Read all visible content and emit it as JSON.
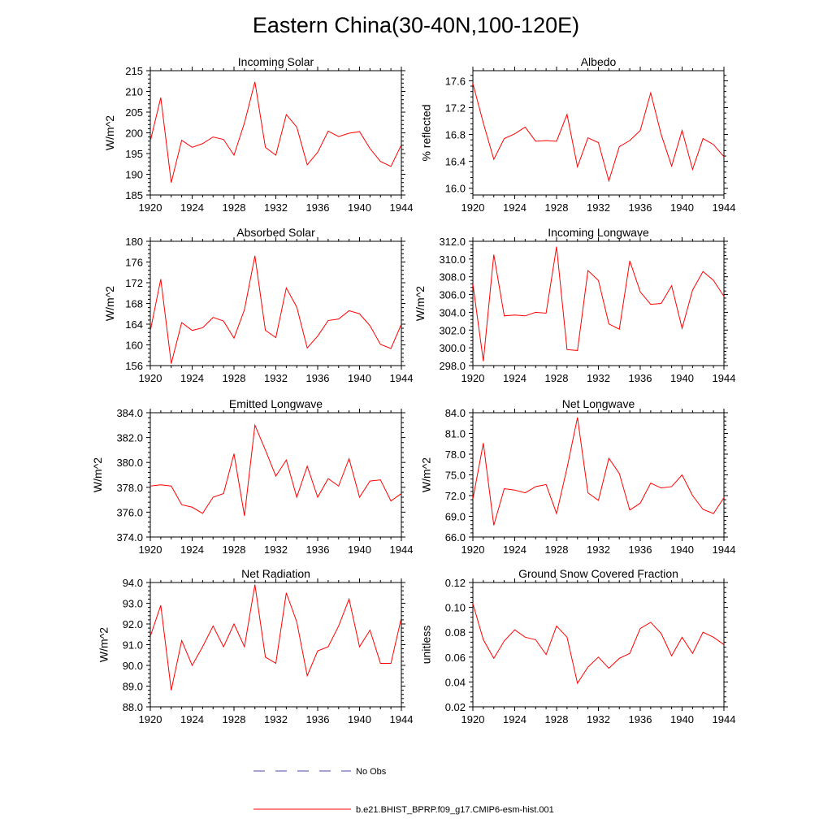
{
  "title": "Eastern China(30-40N,100-120E)",
  "colors": {
    "model": "#ff0000",
    "obs": "#4a4aa8",
    "axis": "#000000"
  },
  "legend": {
    "obs_label": "No Obs",
    "model_label": "b.e21.BHIST_BPRP.f09_g17.CMIP6-esm-hist.001"
  },
  "chart_data": [
    {
      "type": "line",
      "title": "Incoming Solar",
      "ylabel": "W/m^2",
      "xlim": [
        1920,
        1944
      ],
      "ylim": [
        185,
        215
      ],
      "xticks": [
        "1920",
        "1924",
        "1928",
        "1932",
        "1936",
        "1940",
        "1944"
      ],
      "yticks": [
        "185",
        "190",
        "195",
        "200",
        "205",
        "210",
        "215"
      ],
      "x": [
        1920,
        1921,
        1922,
        1923,
        1924,
        1925,
        1926,
        1927,
        1928,
        1929,
        1930,
        1931,
        1932,
        1933,
        1934,
        1935,
        1936,
        1937,
        1938,
        1939,
        1940,
        1941,
        1942,
        1943,
        1944
      ],
      "series": [
        {
          "values": [
            198.0,
            208.5,
            188.0,
            198.2,
            196.5,
            197.4,
            199.0,
            198.4,
            194.6,
            202.4,
            212.3,
            196.5,
            194.6,
            204.4,
            201.4,
            192.3,
            195.3,
            200.4,
            199.1,
            199.9,
            200.3,
            196.2,
            193.1,
            191.9,
            197.1
          ]
        }
      ]
    },
    {
      "type": "line",
      "title": "Albedo",
      "ylabel": "% reflected",
      "xlim": [
        1920,
        1944
      ],
      "ylim": [
        15.9,
        17.75
      ],
      "xticks": [
        "1920",
        "1924",
        "1928",
        "1932",
        "1936",
        "1940",
        "1944"
      ],
      "yticks": [
        "16.0",
        "16.4",
        "16.8",
        "17.2",
        "17.6"
      ],
      "x": [
        1920,
        1921,
        1922,
        1923,
        1924,
        1925,
        1926,
        1927,
        1928,
        1929,
        1930,
        1931,
        1932,
        1933,
        1934,
        1935,
        1936,
        1937,
        1938,
        1939,
        1940,
        1941,
        1942,
        1943,
        1944
      ],
      "series": [
        {
          "values": [
            17.56,
            16.97,
            16.43,
            16.74,
            16.81,
            16.91,
            16.7,
            16.71,
            16.7,
            17.1,
            16.32,
            16.75,
            16.68,
            16.11,
            16.62,
            16.71,
            16.86,
            17.42,
            16.8,
            16.33,
            16.86,
            16.28,
            16.74,
            16.65,
            16.47
          ]
        }
      ]
    },
    {
      "type": "line",
      "title": "Absorbed Solar",
      "ylabel": "W/m^2",
      "xlim": [
        1920,
        1944
      ],
      "ylim": [
        156,
        180
      ],
      "xticks": [
        "1920",
        "1924",
        "1928",
        "1932",
        "1936",
        "1940",
        "1944"
      ],
      "yticks": [
        "156",
        "160",
        "164",
        "168",
        "172",
        "176",
        "180"
      ],
      "x": [
        1920,
        1921,
        1922,
        1923,
        1924,
        1925,
        1926,
        1927,
        1928,
        1929,
        1930,
        1931,
        1932,
        1933,
        1934,
        1935,
        1936,
        1937,
        1938,
        1939,
        1940,
        1941,
        1942,
        1943,
        1944
      ],
      "series": [
        {
          "values": [
            162.7,
            172.7,
            156.4,
            164.3,
            162.8,
            163.3,
            165.3,
            164.6,
            161.3,
            166.8,
            177.2,
            162.8,
            161.4,
            171.0,
            167.3,
            159.4,
            161.7,
            164.7,
            165.0,
            166.6,
            166.0,
            163.7,
            160.1,
            159.3,
            164.0
          ]
        }
      ]
    },
    {
      "type": "line",
      "title": "Incoming Longwave",
      "ylabel": "W/m^2",
      "xlim": [
        1920,
        1944
      ],
      "ylim": [
        298.0,
        312.0
      ],
      "xticks": [
        "1920",
        "1924",
        "1928",
        "1932",
        "1936",
        "1940",
        "1944"
      ],
      "yticks": [
        "298.0",
        "300.0",
        "302.0",
        "304.0",
        "306.0",
        "308.0",
        "310.0",
        "312.0"
      ],
      "x": [
        1920,
        1921,
        1922,
        1923,
        1924,
        1925,
        1926,
        1927,
        1928,
        1929,
        1930,
        1931,
        1932,
        1933,
        1934,
        1935,
        1936,
        1937,
        1938,
        1939,
        1940,
        1941,
        1942,
        1943,
        1944
      ],
      "series": [
        {
          "values": [
            307.2,
            298.5,
            310.5,
            303.6,
            303.7,
            303.6,
            304.0,
            303.9,
            311.4,
            299.8,
            299.7,
            308.7,
            307.6,
            302.7,
            302.1,
            309.8,
            306.3,
            304.9,
            305.0,
            307.0,
            302.2,
            306.5,
            308.6,
            307.6,
            305.8
          ]
        }
      ]
    },
    {
      "type": "line",
      "title": "Emitted Longwave",
      "ylabel": "W/m^2",
      "xlim": [
        1920,
        1944
      ],
      "ylim": [
        374.0,
        384.0
      ],
      "xticks": [
        "1920",
        "1924",
        "1928",
        "1932",
        "1936",
        "1940",
        "1944"
      ],
      "yticks": [
        "374.0",
        "376.0",
        "378.0",
        "380.0",
        "382.0",
        "384.0"
      ],
      "x": [
        1920,
        1921,
        1922,
        1923,
        1924,
        1925,
        1926,
        1927,
        1928,
        1929,
        1930,
        1931,
        1932,
        1933,
        1934,
        1935,
        1936,
        1937,
        1938,
        1939,
        1940,
        1941,
        1942,
        1943,
        1944
      ],
      "series": [
        {
          "values": [
            378.1,
            378.2,
            378.1,
            376.6,
            376.4,
            375.9,
            377.2,
            377.5,
            380.7,
            375.7,
            383.0,
            381.0,
            378.9,
            380.2,
            377.2,
            379.7,
            377.2,
            378.7,
            378.1,
            380.3,
            377.2,
            378.5,
            378.6,
            376.9,
            377.5
          ]
        }
      ]
    },
    {
      "type": "line",
      "title": "Net Longwave",
      "ylabel": "W/m^2",
      "xlim": [
        1920,
        1944
      ],
      "ylim": [
        66.0,
        84.0
      ],
      "xticks": [
        "1920",
        "1924",
        "1928",
        "1932",
        "1936",
        "1940",
        "1944"
      ],
      "yticks": [
        "66.0",
        "69.0",
        "72.0",
        "75.0",
        "78.0",
        "81.0",
        "84.0"
      ],
      "x": [
        1920,
        1921,
        1922,
        1923,
        1924,
        1925,
        1926,
        1927,
        1928,
        1929,
        1930,
        1931,
        1932,
        1933,
        1934,
        1935,
        1936,
        1937,
        1938,
        1939,
        1940,
        1941,
        1942,
        1943,
        1944
      ],
      "series": [
        {
          "values": [
            71.5,
            79.6,
            67.7,
            73.0,
            72.8,
            72.4,
            73.3,
            73.6,
            69.4,
            76.0,
            83.3,
            72.4,
            71.3,
            77.4,
            75.2,
            69.9,
            70.9,
            73.8,
            73.1,
            73.3,
            75.0,
            72.0,
            70.0,
            69.4,
            71.7
          ]
        }
      ]
    },
    {
      "type": "line",
      "title": "Net Radiation",
      "ylabel": "W/m^2",
      "xlim": [
        1920,
        1944
      ],
      "ylim": [
        88.0,
        94.0
      ],
      "xticks": [
        "1920",
        "1924",
        "1928",
        "1932",
        "1936",
        "1940",
        "1944"
      ],
      "yticks": [
        "88.0",
        "89.0",
        "90.0",
        "91.0",
        "92.0",
        "93.0",
        "94.0"
      ],
      "x": [
        1920,
        1921,
        1922,
        1923,
        1924,
        1925,
        1926,
        1927,
        1928,
        1929,
        1930,
        1931,
        1932,
        1933,
        1934,
        1935,
        1936,
        1937,
        1938,
        1939,
        1940,
        1941,
        1942,
        1943,
        1944
      ],
      "series": [
        {
          "values": [
            91.4,
            92.9,
            88.8,
            91.2,
            90.0,
            90.9,
            91.9,
            90.9,
            92.0,
            90.9,
            93.9,
            90.4,
            90.1,
            93.5,
            92.1,
            89.5,
            90.7,
            90.9,
            91.9,
            93.2,
            90.9,
            91.7,
            90.1,
            90.1,
            92.3
          ]
        }
      ]
    },
    {
      "type": "line",
      "title": "Ground Snow Covered Fraction",
      "ylabel": "unitless",
      "xlim": [
        1920,
        1944
      ],
      "ylim": [
        0.02,
        0.12
      ],
      "xticks": [
        "1920",
        "1924",
        "1928",
        "1932",
        "1936",
        "1940",
        "1944"
      ],
      "yticks": [
        "0.02",
        "0.04",
        "0.06",
        "0.08",
        "0.10",
        "0.12"
      ],
      "x": [
        1920,
        1921,
        1922,
        1923,
        1924,
        1925,
        1926,
        1927,
        1928,
        1929,
        1930,
        1931,
        1932,
        1933,
        1934,
        1935,
        1936,
        1937,
        1938,
        1939,
        1940,
        1941,
        1942,
        1943,
        1944
      ],
      "series": [
        {
          "values": [
            0.103,
            0.074,
            0.059,
            0.073,
            0.082,
            0.076,
            0.074,
            0.062,
            0.085,
            0.076,
            0.039,
            0.052,
            0.06,
            0.051,
            0.059,
            0.063,
            0.083,
            0.088,
            0.079,
            0.061,
            0.076,
            0.063,
            0.08,
            0.076,
            0.07
          ]
        }
      ]
    }
  ]
}
